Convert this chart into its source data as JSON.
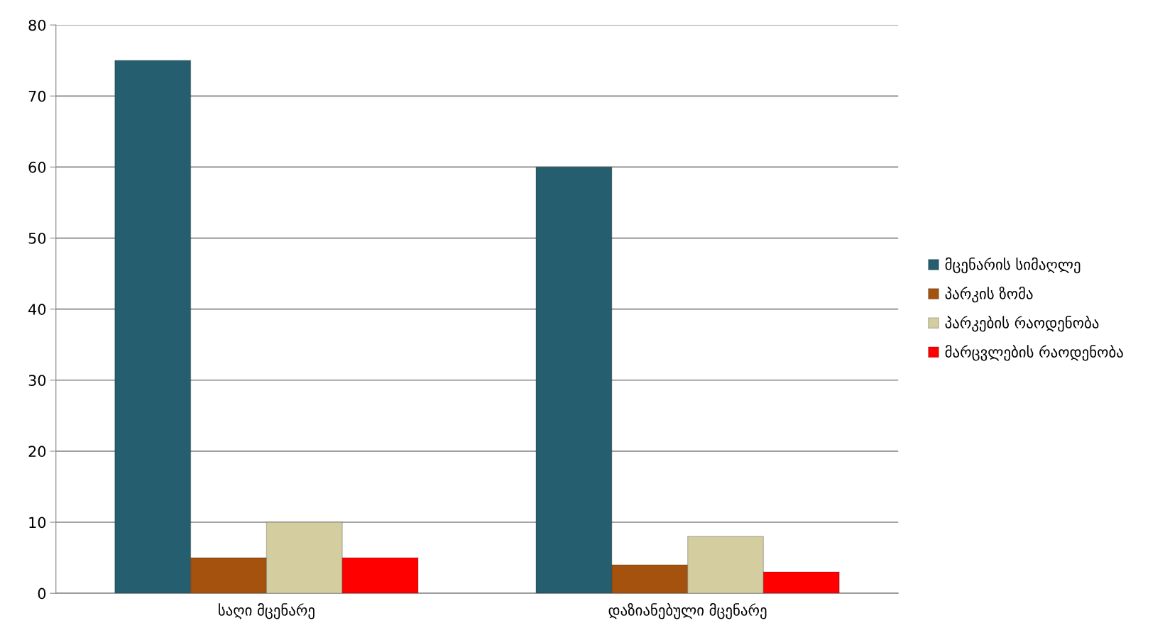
{
  "chart_data": {
    "type": "bar",
    "categories": [
      "საღი მცენარე",
      "დაზიანებული მცენარე"
    ],
    "series": [
      {
        "name": "მცენარის სიმაღლე",
        "color": "#255e6e",
        "values": [
          75,
          60
        ]
      },
      {
        "name": "პარკის ზომა",
        "color": "#a5520f",
        "values": [
          5,
          4
        ]
      },
      {
        "name": "პარკების რაოდენობა",
        "color": "#d3cda0",
        "values": [
          10,
          8
        ]
      },
      {
        "name": "მარცვლების რაოდენობა",
        "color": "#ff0000",
        "values": [
          5,
          3
        ]
      }
    ],
    "ylim": [
      0,
      80
    ],
    "yticks": [
      0,
      10,
      20,
      30,
      40,
      50,
      60,
      70,
      80
    ],
    "grid": "y",
    "legend": "right"
  }
}
